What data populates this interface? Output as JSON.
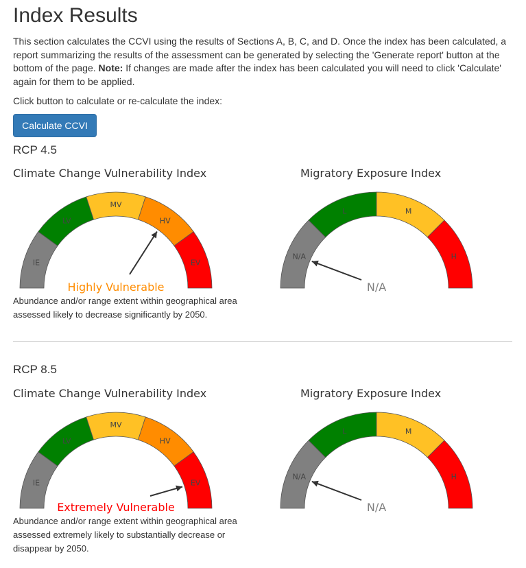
{
  "title": "Index Results",
  "intro": {
    "text_before_note": "This section calculates the CCVI using the results of Sections A, B, C, and D. Once the index has been calculated, a report summarizing the results of the assessment can be generated by selecting the 'Generate report' button at the bottom of the page. ",
    "note_label": "Note:",
    "text_after_note": " If changes are made after the index has been calculated you will need to click 'Calculate' again for them to be applied."
  },
  "click_prompt": "Click button to calculate or re-calculate the index:",
  "calculate_button": "Calculate CCVI",
  "colors": {
    "gray": "#808080",
    "dark_green": "#008000",
    "yellow": "#ffc125",
    "orange": "#ff8c00",
    "red": "#ff0000",
    "button_blue": "#337ab7"
  },
  "scenarios": [
    {
      "label": "RCP 4.5",
      "ccvi": {
        "title": "Climate Change Vulnerability Index",
        "segments": [
          "IE",
          "LV",
          "MV",
          "HV",
          "EV"
        ],
        "result": "Highly Vulnerable",
        "result_color": "#ff8c00",
        "pointer_segment": 3,
        "description": "Abundance and/or range extent within geographical area assessed likely to decrease significantly by 2050."
      },
      "mei": {
        "title": "Migratory Exposure Index",
        "segments": [
          "N/A",
          "L",
          "M",
          "H"
        ],
        "result": "N/A",
        "result_color": "#808080",
        "pointer_segment": 0
      }
    },
    {
      "label": "RCP 8.5",
      "ccvi": {
        "title": "Climate Change Vulnerability Index",
        "segments": [
          "IE",
          "LV",
          "MV",
          "HV",
          "EV"
        ],
        "result": "Extremely Vulnerable",
        "result_color": "#ff0000",
        "pointer_segment": 4,
        "description": "Abundance and/or range extent within geographical area assessed extremely likely to substantially decrease or disappear by 2050."
      },
      "mei": {
        "title": "Migratory Exposure Index",
        "segments": [
          "N/A",
          "L",
          "M",
          "H"
        ],
        "result": "N/A",
        "result_color": "#808080",
        "pointer_segment": 0
      }
    }
  ]
}
